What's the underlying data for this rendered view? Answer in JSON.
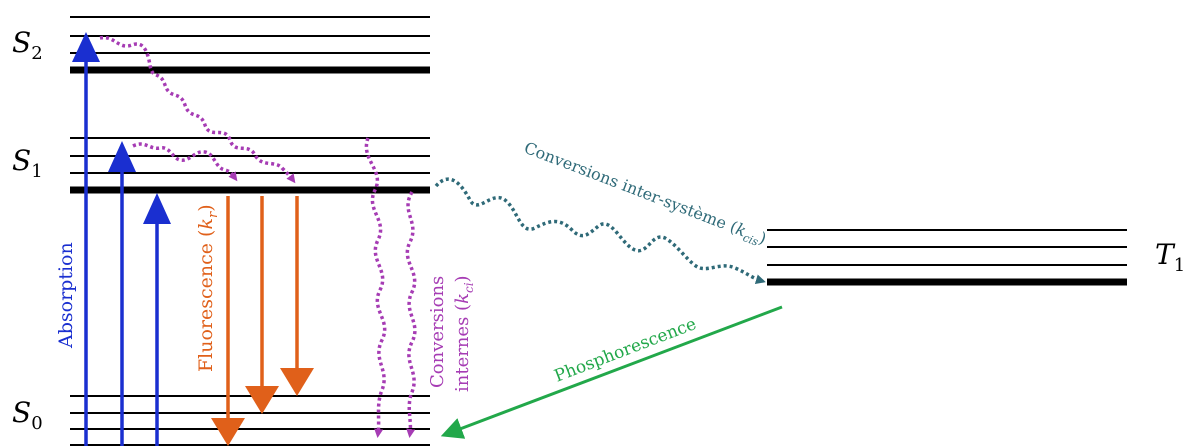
{
  "states": {
    "s2": "S",
    "s2_sub": "2",
    "s1": "S",
    "s1_sub": "1",
    "s0": "S",
    "s0_sub": "0",
    "t1": "T",
    "t1_sub": "1"
  },
  "processes": {
    "absorption": "Absorption",
    "fluorescence_prefix": "Fluorescence (",
    "fluorescence_k": "k",
    "fluorescence_sub": "r",
    "fluorescence_suffix": ")",
    "ic_line1": "Conversions",
    "ic_line2_prefix": "internes (",
    "ic_k": "k",
    "ic_sub": "ci",
    "ic_suffix": ")",
    "isc_prefix": "Conversions inter-système (",
    "isc_k": "k",
    "isc_sub": "cis",
    "isc_suffix": ")",
    "phosphorescence": "Phosphorescence"
  },
  "colors": {
    "absorption": "#1a2fd0",
    "fluorescence": "#e0601a",
    "internal_conversion": "#a63cb4",
    "intersystem_crossing": "#2f6a78",
    "phosphorescence": "#22a84a",
    "levels": "#000000"
  }
}
